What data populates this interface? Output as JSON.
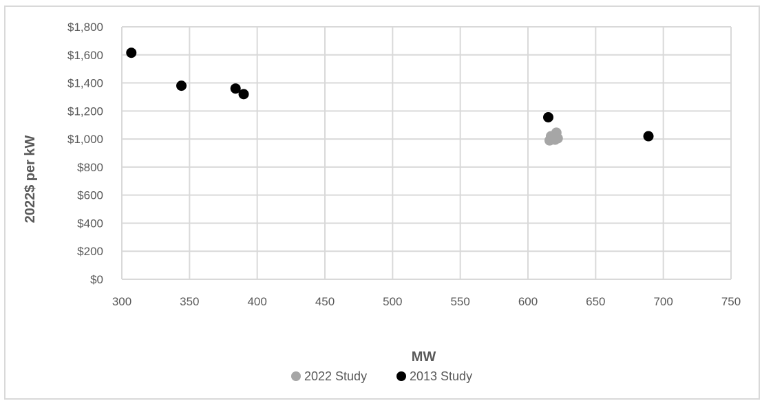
{
  "chart_data": {
    "type": "scatter",
    "xlabel": "MW",
    "ylabel": "2022$ per kW",
    "xlim": [
      300,
      750
    ],
    "ylim": [
      0,
      1800
    ],
    "xticks": [
      300,
      350,
      400,
      450,
      500,
      550,
      600,
      650,
      700,
      750
    ],
    "yticks": [
      0,
      200,
      400,
      600,
      800,
      1000,
      1200,
      1400,
      1600,
      1800
    ],
    "ytick_labels": [
      "$0",
      "$200",
      "$400",
      "$600",
      "$800",
      "$1,000",
      "$1,200",
      "$1,400",
      "$1,600",
      "$1,800"
    ],
    "grid": true,
    "legend_position": "bottom",
    "series": [
      {
        "name": "2022 Study",
        "color": "#a6a6a6",
        "points": [
          {
            "x": 616,
            "y": 990
          },
          {
            "x": 617,
            "y": 1020
          },
          {
            "x": 619,
            "y": 1010
          },
          {
            "x": 620,
            "y": 995
          },
          {
            "x": 621,
            "y": 1045
          },
          {
            "x": 622,
            "y": 1005
          }
        ]
      },
      {
        "name": "2013 Study",
        "color": "#000000",
        "points": [
          {
            "x": 307,
            "y": 1615
          },
          {
            "x": 344,
            "y": 1380
          },
          {
            "x": 384,
            "y": 1360
          },
          {
            "x": 390,
            "y": 1320
          },
          {
            "x": 615,
            "y": 1155
          },
          {
            "x": 689,
            "y": 1020
          }
        ]
      }
    ]
  }
}
